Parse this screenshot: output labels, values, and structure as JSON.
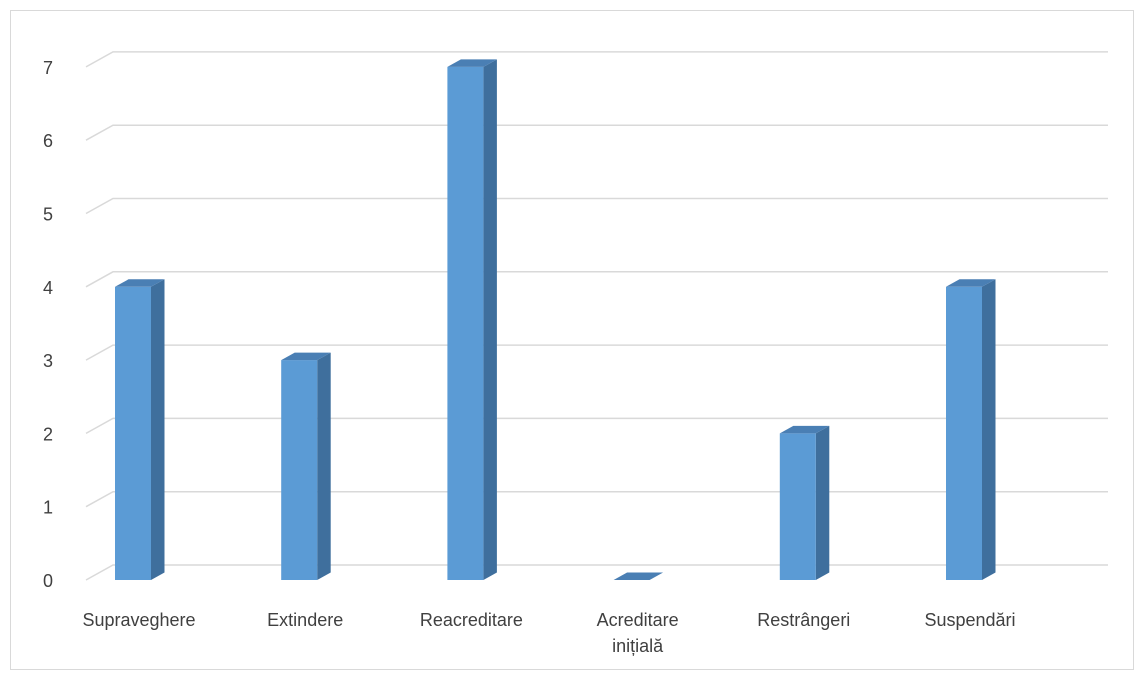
{
  "chart_data": {
    "type": "bar",
    "style": "3d-clustered-column",
    "categories": [
      "Supraveghere",
      "Extindere",
      "Reacreditare",
      "Acreditare inițială",
      "Restrângeri",
      "Suspendări"
    ],
    "category_label_lines": [
      [
        "Supraveghere"
      ],
      [
        "Extindere"
      ],
      [
        "Reacreditare"
      ],
      [
        "Acreditare",
        "inițială"
      ],
      [
        "Restrângeri"
      ],
      [
        "Suspendări"
      ]
    ],
    "values": [
      4,
      3,
      7,
      0,
      2,
      4
    ],
    "yticks": [
      "0",
      "1",
      "2",
      "3",
      "4",
      "5",
      "6",
      "7"
    ],
    "ylim": [
      0,
      7
    ],
    "title": "",
    "xlabel": "",
    "ylabel": "",
    "grid": true,
    "legend": "none",
    "colors": {
      "bar_front": "#5b9bd5",
      "bar_side": "#3f6f9d",
      "bar_top": "#4a7fb4",
      "grid": "#d9d9d9",
      "text": "#404040"
    }
  }
}
